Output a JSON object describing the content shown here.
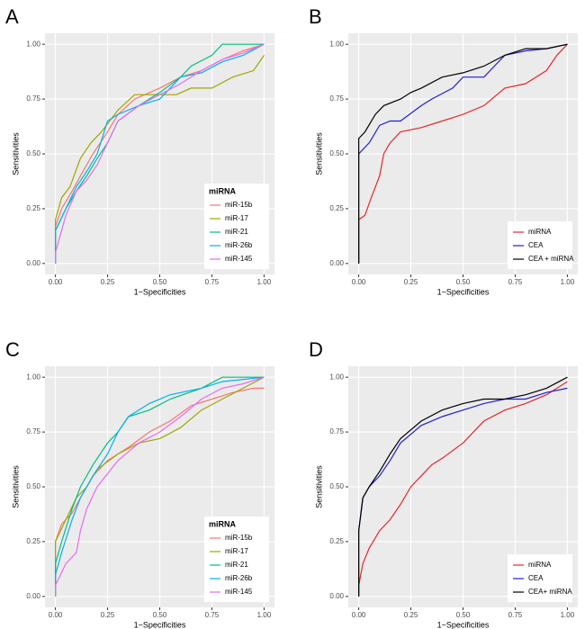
{
  "chart_data": [
    {
      "type": "line",
      "label": "A",
      "x_label": "1−Specificities",
      "y_label": "Sensitivities",
      "legend_title": "miRNA",
      "legend": "bottom-right",
      "grid": true,
      "xlim": [
        -0.05,
        1.05
      ],
      "ylim": [
        -0.05,
        1.05
      ],
      "xticks": [
        {
          "value": 0,
          "label": "0.00"
        },
        {
          "value": 0.25,
          "label": "0.25"
        },
        {
          "value": 0.5,
          "label": "0.50"
        },
        {
          "value": 0.75,
          "label": "0.75"
        },
        {
          "value": 1,
          "label": "1.00"
        }
      ],
      "yticks": [
        {
          "value": 0,
          "label": "0.00"
        },
        {
          "value": 0.25,
          "label": "0.25"
        },
        {
          "value": 0.5,
          "label": "0.50"
        },
        {
          "value": 0.75,
          "label": "0.75"
        },
        {
          "value": 1,
          "label": "1.00"
        }
      ],
      "series": [
        {
          "name": "miR-15b",
          "color": "#F8766D",
          "x": [
            0,
            0,
            0.03,
            0.08,
            0.12,
            0.18,
            0.25,
            0.3,
            0.38,
            0.5,
            0.6,
            0.7,
            0.8,
            0.9,
            1
          ],
          "values": [
            0,
            0.17,
            0.25,
            0.33,
            0.4,
            0.5,
            0.6,
            0.68,
            0.75,
            0.8,
            0.85,
            0.88,
            0.93,
            0.97,
            1
          ]
        },
        {
          "name": "miR-17",
          "color": "#A3A500",
          "x": [
            0,
            0,
            0.03,
            0.07,
            0.12,
            0.17,
            0.22,
            0.3,
            0.38,
            0.5,
            0.58,
            0.65,
            0.75,
            0.85,
            0.95,
            1
          ],
          "values": [
            0,
            0.2,
            0.3,
            0.35,
            0.48,
            0.55,
            0.6,
            0.7,
            0.77,
            0.77,
            0.77,
            0.8,
            0.8,
            0.85,
            0.88,
            0.95
          ]
        },
        {
          "name": "miR-21",
          "color": "#00BF7D",
          "x": [
            0,
            0,
            0.05,
            0.1,
            0.15,
            0.2,
            0.25,
            0.3,
            0.4,
            0.5,
            0.6,
            0.65,
            0.75,
            0.8,
            0.95,
            1
          ],
          "values": [
            0,
            0.15,
            0.25,
            0.33,
            0.4,
            0.48,
            0.55,
            0.65,
            0.72,
            0.78,
            0.85,
            0.9,
            0.95,
            1,
            1,
            1
          ]
        },
        {
          "name": "miR-26b",
          "color": "#00B0F6",
          "x": [
            0,
            0,
            0.05,
            0.1,
            0.15,
            0.2,
            0.25,
            0.3,
            0.4,
            0.5,
            0.6,
            0.7,
            0.8,
            0.9,
            1
          ],
          "values": [
            0,
            0.15,
            0.25,
            0.35,
            0.42,
            0.5,
            0.65,
            0.68,
            0.72,
            0.75,
            0.85,
            0.87,
            0.92,
            0.95,
            1
          ]
        },
        {
          "name": "miR-145",
          "color": "#E76BF3",
          "x": [
            0,
            0,
            0.05,
            0.1,
            0.15,
            0.2,
            0.25,
            0.3,
            0.4,
            0.5,
            0.6,
            0.7,
            0.8,
            0.9,
            1
          ],
          "values": [
            0,
            0.05,
            0.22,
            0.33,
            0.38,
            0.45,
            0.55,
            0.65,
            0.72,
            0.77,
            0.82,
            0.88,
            0.93,
            0.96,
            1
          ]
        }
      ]
    },
    {
      "type": "line",
      "label": "B",
      "x_label": "1−Specificities",
      "y_label": "Sensitivities",
      "legend": "bottom-right",
      "grid": true,
      "xlim": [
        -0.05,
        1.05
      ],
      "ylim": [
        -0.05,
        1.05
      ],
      "xticks": [
        {
          "value": 0,
          "label": "0.00"
        },
        {
          "value": 0.25,
          "label": "0.25"
        },
        {
          "value": 0.5,
          "label": "0.50"
        },
        {
          "value": 0.75,
          "label": "0.75"
        },
        {
          "value": 1,
          "label": "1.00"
        }
      ],
      "yticks": [
        {
          "value": 0,
          "label": "0.00"
        },
        {
          "value": 0.25,
          "label": "0.25"
        },
        {
          "value": 0.5,
          "label": "0.50"
        },
        {
          "value": 0.75,
          "label": "0.75"
        },
        {
          "value": 1,
          "label": "1.00"
        }
      ],
      "series": [
        {
          "name": "miRNA",
          "color": "#E8262B",
          "x": [
            0,
            0,
            0.03,
            0.06,
            0.1,
            0.12,
            0.15,
            0.2,
            0.3,
            0.4,
            0.5,
            0.6,
            0.7,
            0.8,
            0.9,
            0.95,
            1
          ],
          "values": [
            0,
            0.2,
            0.22,
            0.3,
            0.4,
            0.5,
            0.55,
            0.6,
            0.62,
            0.65,
            0.68,
            0.72,
            0.8,
            0.82,
            0.88,
            0.95,
            1
          ]
        },
        {
          "name": "CEA",
          "color": "#1F1FD6",
          "x": [
            0,
            0,
            0.05,
            0.1,
            0.15,
            0.2,
            0.3,
            0.35,
            0.45,
            0.5,
            0.6,
            0.65,
            0.7,
            0.8,
            0.9,
            1
          ],
          "values": [
            0,
            0.5,
            0.55,
            0.63,
            0.65,
            0.65,
            0.72,
            0.75,
            0.8,
            0.85,
            0.85,
            0.9,
            0.95,
            0.97,
            0.98,
            1
          ]
        },
        {
          "name": "CEA + miRNA",
          "color": "#000000",
          "x": [
            0,
            0,
            0.03,
            0.08,
            0.12,
            0.2,
            0.25,
            0.3,
            0.4,
            0.5,
            0.6,
            0.7,
            0.8,
            0.9,
            1
          ],
          "values": [
            0,
            0.57,
            0.6,
            0.68,
            0.72,
            0.75,
            0.78,
            0.8,
            0.85,
            0.87,
            0.9,
            0.95,
            0.98,
            0.98,
            1
          ]
        }
      ]
    },
    {
      "type": "line",
      "label": "C",
      "x_label": "1−Specificities",
      "y_label": "Sensitivities",
      "legend_title": "miRNA",
      "legend": "bottom-right",
      "grid": true,
      "xlim": [
        -0.05,
        1.05
      ],
      "ylim": [
        -0.05,
        1.05
      ],
      "xticks": [
        {
          "value": 0,
          "label": "0.00"
        },
        {
          "value": 0.25,
          "label": "0.25"
        },
        {
          "value": 0.5,
          "label": "0.50"
        },
        {
          "value": 0.75,
          "label": "0.75"
        },
        {
          "value": 1,
          "label": "1.00"
        }
      ],
      "yticks": [
        {
          "value": 0,
          "label": "0.00"
        },
        {
          "value": 0.25,
          "label": "0.25"
        },
        {
          "value": 0.5,
          "label": "0.50"
        },
        {
          "value": 0.75,
          "label": "0.75"
        },
        {
          "value": 1,
          "label": "1.00"
        }
      ],
      "series": [
        {
          "name": "miR-15b",
          "color": "#F8766D",
          "x": [
            0,
            0,
            0.03,
            0.08,
            0.12,
            0.18,
            0.25,
            0.35,
            0.45,
            0.55,
            0.65,
            0.75,
            0.85,
            0.95,
            1
          ],
          "values": [
            0,
            0.25,
            0.33,
            0.38,
            0.45,
            0.55,
            0.62,
            0.68,
            0.75,
            0.8,
            0.87,
            0.9,
            0.93,
            0.95,
            0.95
          ]
        },
        {
          "name": "miR-17",
          "color": "#A3A500",
          "x": [
            0,
            0,
            0.05,
            0.1,
            0.15,
            0.2,
            0.3,
            0.4,
            0.5,
            0.6,
            0.7,
            0.8,
            0.9,
            1
          ],
          "values": [
            0,
            0.25,
            0.35,
            0.45,
            0.5,
            0.58,
            0.65,
            0.7,
            0.72,
            0.77,
            0.85,
            0.9,
            0.95,
            1
          ]
        },
        {
          "name": "miR-21",
          "color": "#00BF7D",
          "x": [
            0,
            0,
            0.03,
            0.08,
            0.12,
            0.18,
            0.25,
            0.3,
            0.35,
            0.45,
            0.55,
            0.7,
            0.8,
            1
          ],
          "values": [
            0,
            0.15,
            0.25,
            0.4,
            0.5,
            0.6,
            0.7,
            0.75,
            0.82,
            0.85,
            0.9,
            0.95,
            1,
            1
          ]
        },
        {
          "name": "miR-26b",
          "color": "#00B0F6",
          "x": [
            0,
            0,
            0.03,
            0.08,
            0.12,
            0.18,
            0.25,
            0.3,
            0.35,
            0.45,
            0.55,
            0.7,
            0.8,
            1
          ],
          "values": [
            0,
            0.1,
            0.2,
            0.35,
            0.45,
            0.55,
            0.65,
            0.75,
            0.82,
            0.88,
            0.92,
            0.95,
            0.98,
            1
          ]
        },
        {
          "name": "miR-145",
          "color": "#E76BF3",
          "x": [
            0,
            0,
            0.05,
            0.1,
            0.12,
            0.15,
            0.2,
            0.3,
            0.4,
            0.5,
            0.6,
            0.7,
            0.8,
            0.9,
            1
          ],
          "values": [
            0,
            0.05,
            0.15,
            0.2,
            0.3,
            0.4,
            0.5,
            0.62,
            0.7,
            0.75,
            0.82,
            0.9,
            0.95,
            0.97,
            1
          ]
        }
      ]
    },
    {
      "type": "line",
      "label": "D",
      "x_label": "1−Specificities",
      "y_label": "Sensitivities",
      "legend": "bottom-right",
      "grid": true,
      "xlim": [
        -0.05,
        1.05
      ],
      "ylim": [
        -0.05,
        1.05
      ],
      "xticks": [
        {
          "value": 0,
          "label": "0.00"
        },
        {
          "value": 0.25,
          "label": "0.25"
        },
        {
          "value": 0.5,
          "label": "0.50"
        },
        {
          "value": 0.75,
          "label": "0.75"
        },
        {
          "value": 1,
          "label": "1.00"
        }
      ],
      "yticks": [
        {
          "value": 0,
          "label": "0.00"
        },
        {
          "value": 0.25,
          "label": "0.25"
        },
        {
          "value": 0.5,
          "label": "0.50"
        },
        {
          "value": 0.75,
          "label": "0.75"
        },
        {
          "value": 1,
          "label": "1.00"
        }
      ],
      "series": [
        {
          "name": "miRNA",
          "color": "#E8262B",
          "x": [
            0,
            0,
            0.02,
            0.05,
            0.1,
            0.15,
            0.2,
            0.25,
            0.3,
            0.35,
            0.4,
            0.5,
            0.55,
            0.6,
            0.7,
            0.8,
            0.9,
            1
          ],
          "values": [
            0,
            0.05,
            0.15,
            0.22,
            0.3,
            0.35,
            0.42,
            0.5,
            0.55,
            0.6,
            0.63,
            0.7,
            0.75,
            0.8,
            0.85,
            0.88,
            0.92,
            0.98
          ]
        },
        {
          "name": "CEA",
          "color": "#1F1FD6",
          "x": [
            0,
            0,
            0.02,
            0.05,
            0.1,
            0.15,
            0.2,
            0.3,
            0.4,
            0.5,
            0.6,
            0.7,
            0.8,
            0.9,
            1
          ],
          "values": [
            0,
            0.3,
            0.45,
            0.5,
            0.55,
            0.62,
            0.7,
            0.78,
            0.82,
            0.85,
            0.88,
            0.9,
            0.9,
            0.93,
            0.95
          ]
        },
        {
          "name": "CEA+ miRNA",
          "color": "#000000",
          "x": [
            0,
            0,
            0.02,
            0.05,
            0.1,
            0.15,
            0.2,
            0.3,
            0.4,
            0.5,
            0.6,
            0.7,
            0.8,
            0.9,
            1
          ],
          "values": [
            0,
            0.3,
            0.45,
            0.5,
            0.57,
            0.65,
            0.72,
            0.8,
            0.85,
            0.88,
            0.9,
            0.9,
            0.92,
            0.95,
            1
          ]
        }
      ]
    }
  ]
}
